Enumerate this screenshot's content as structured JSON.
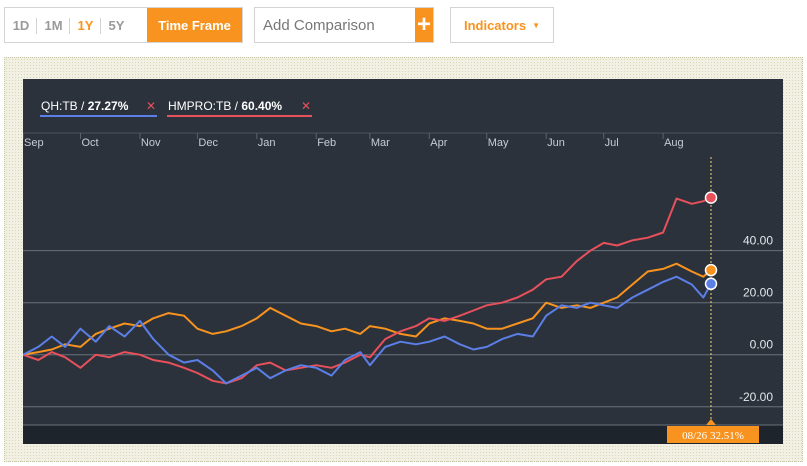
{
  "toolbar": {
    "timeframes": [
      {
        "label": "1D",
        "active": false
      },
      {
        "label": "1M",
        "active": false
      },
      {
        "label": "1Y",
        "active": true
      },
      {
        "label": "5Y",
        "active": false
      }
    ],
    "time_frame_label": "Time Frame",
    "comparison_placeholder": "Add Comparison",
    "add_icon": "plus-icon",
    "indicators_label": "Indicators",
    "indicators_icon": "caret-down-icon"
  },
  "colors": {
    "accent": "#f7931e",
    "chart_bg": "#2b323c",
    "series_blue": "#5b7fe6",
    "series_red": "#e8505b",
    "series_orange": "#f7931e"
  },
  "chart_data": {
    "type": "line",
    "title": "",
    "xlabel": "",
    "ylabel": "",
    "legend_position": "top-left",
    "legend": [
      {
        "symbol": "QH:TB",
        "value": "27.27%",
        "color": "#5b7fe6",
        "remove_icon": "close-icon"
      },
      {
        "symbol": "HMPRO:TB",
        "value": "60.40%",
        "color": "#e8505b",
        "remove_icon": "close-icon"
      }
    ],
    "months": [
      "Sep",
      "Oct",
      "Nov",
      "Dec",
      "Jan",
      "Feb",
      "Mar",
      "Apr",
      "May",
      "Jun",
      "Jul",
      "Aug"
    ],
    "month_day_offsets": [
      0,
      30,
      61,
      91,
      122,
      153,
      181,
      212,
      242,
      273,
      303,
      334
    ],
    "x_range_days": [
      0,
      359
    ],
    "ylim": [
      -27,
      76
    ],
    "y_ticks": [
      "40.00",
      "20.00",
      "0.00",
      "-20.00"
    ],
    "y_tick_values": [
      40,
      20,
      0,
      -20
    ],
    "grid": true,
    "marker_label": "08/26",
    "marker_value": "32.51%",
    "series": [
      {
        "name": "QH:TB",
        "color": "#5b7fe6",
        "end_value": 27.27,
        "x": [
          0,
          8,
          15,
          22,
          30,
          38,
          45,
          53,
          61,
          68,
          76,
          84,
          91,
          99,
          106,
          114,
          122,
          129,
          137,
          145,
          153,
          161,
          168,
          176,
          181,
          189,
          197,
          205,
          212,
          220,
          228,
          235,
          242,
          250,
          258,
          266,
          273,
          281,
          289,
          296,
          303,
          310,
          318,
          326,
          334,
          341,
          349,
          355,
          359
        ],
        "values": [
          0,
          3,
          7,
          3,
          10,
          5,
          11,
          7,
          13,
          6,
          0,
          -3,
          -2,
          -6,
          -11,
          -8,
          -5,
          -9,
          -6,
          -4,
          -5,
          -8,
          -2,
          1,
          -4,
          3,
          5,
          4,
          5,
          7,
          4,
          2,
          3,
          6,
          8,
          7,
          15,
          19,
          18,
          20,
          19,
          18,
          22,
          25,
          28,
          30,
          27,
          22,
          27.27
        ]
      },
      {
        "name": "HMPRO:TB",
        "color": "#e8505b",
        "end_value": 60.4,
        "x": [
          0,
          8,
          15,
          22,
          30,
          38,
          45,
          53,
          61,
          68,
          76,
          84,
          91,
          99,
          106,
          114,
          122,
          129,
          137,
          145,
          153,
          161,
          168,
          176,
          181,
          189,
          197,
          205,
          212,
          220,
          228,
          235,
          242,
          250,
          258,
          266,
          273,
          281,
          289,
          296,
          303,
          310,
          318,
          326,
          334,
          341,
          349,
          355,
          359
        ],
        "values": [
          0,
          -2,
          1,
          -1,
          -5,
          0,
          -1,
          1,
          0,
          -2,
          -3,
          -5,
          -7,
          -10,
          -11,
          -9,
          -4,
          -3,
          -6,
          -5,
          -4,
          -5,
          -3,
          0,
          -1,
          6,
          9,
          11,
          14,
          13,
          15,
          17,
          19,
          20,
          22,
          25,
          29,
          30,
          36,
          40,
          43,
          42,
          44,
          45,
          47,
          60,
          58,
          59,
          60.4
        ]
      },
      {
        "name": "",
        "color": "#f7931e",
        "end_value": 32.51,
        "x": [
          0,
          8,
          15,
          22,
          30,
          38,
          45,
          53,
          61,
          68,
          76,
          84,
          91,
          99,
          106,
          114,
          122,
          129,
          137,
          145,
          153,
          161,
          168,
          176,
          181,
          189,
          197,
          205,
          212,
          220,
          228,
          235,
          242,
          250,
          258,
          266,
          273,
          281,
          289,
          296,
          303,
          310,
          318,
          326,
          334,
          341,
          349,
          355,
          359
        ],
        "values": [
          0,
          1,
          2,
          4,
          3,
          8,
          10,
          12,
          11,
          14,
          16,
          15,
          10,
          8,
          9,
          11,
          14,
          18,
          15,
          12,
          11,
          9,
          10,
          8,
          11,
          10,
          8,
          7,
          12,
          14,
          13,
          12,
          10,
          10,
          12,
          14,
          20,
          18,
          19,
          18,
          20,
          22,
          27,
          32,
          33,
          35,
          32,
          30,
          32.51
        ]
      }
    ]
  }
}
